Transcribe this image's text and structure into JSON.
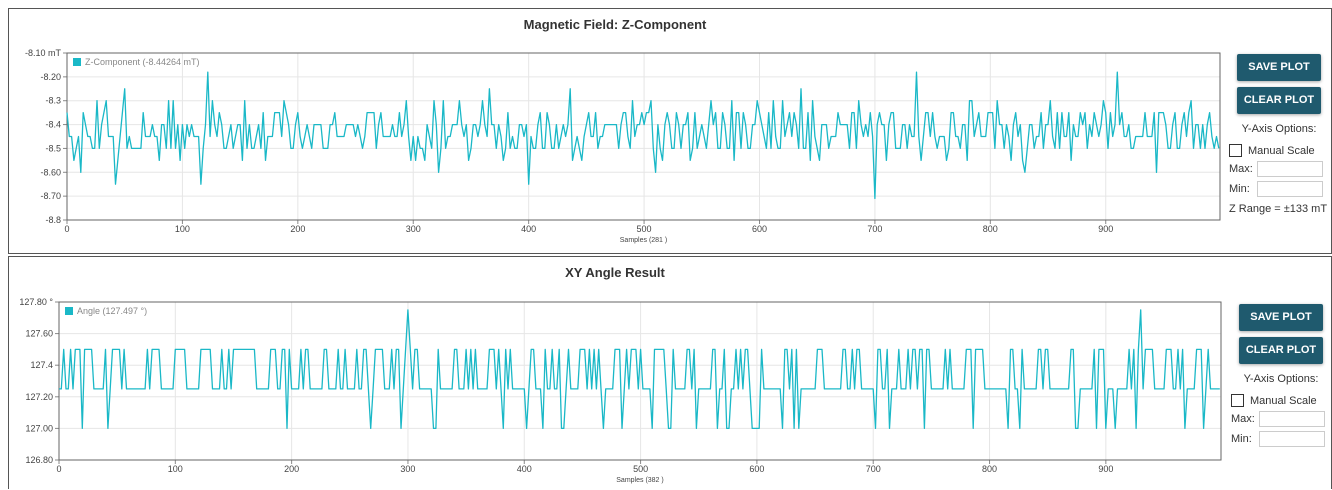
{
  "panels": {
    "z": {
      "title": "Magnetic Field: Z-Component",
      "save_label": "SAVE PLOT",
      "clear_label": "CLEAR PLOT",
      "yaxis_options_label": "Y-Axis Options:",
      "manual_scale_label": "Manual Scale",
      "max_label": "Max:",
      "min_label": "Min:",
      "range_text": "Z Range = ±133 mT"
    },
    "xy": {
      "title": "XY Angle Result",
      "save_label": "SAVE PLOT",
      "clear_label": "CLEAR PLOT",
      "yaxis_options_label": "Y-Axis Options:",
      "manual_scale_label": "Manual Scale",
      "max_label": "Max:",
      "min_label": "Min:"
    }
  },
  "colors": {
    "series": "#1ab8c7",
    "button": "#1f5a6e",
    "grid": "#e6e6e6"
  },
  "chart_data": [
    {
      "type": "line",
      "title": "Magnetic Field: Z-Component",
      "xlabel": "Samples (281 )",
      "ylabel": "",
      "xlim": [
        0,
        999
      ],
      "ylim": [
        -8.8,
        -8.1
      ],
      "xticks": [
        0,
        100,
        200,
        300,
        400,
        500,
        600,
        700,
        800,
        900
      ],
      "yticks": [
        {
          "v": -8.1,
          "label": "-8.10 mT"
        },
        {
          "v": -8.2,
          "label": "-8.20"
        },
        {
          "v": -8.3,
          "label": "-8.3"
        },
        {
          "v": -8.4,
          "label": "-8.4"
        },
        {
          "v": -8.5,
          "label": "-8.5"
        },
        {
          "v": -8.6,
          "label": "-8.60"
        },
        {
          "v": -8.7,
          "label": "-8.70"
        },
        {
          "v": -8.8,
          "label": "-8.8"
        }
      ],
      "legend": "top-left",
      "series": [
        {
          "name": "Z-Component (-8.44264 mT)",
          "levels": [
            -8.45,
            -8.4,
            -8.5,
            -8.35,
            -8.45,
            -8.55,
            -8.4,
            -8.5,
            -8.45,
            -8.3
          ],
          "spikes": [
            {
              "x": 12,
              "y": -8.6
            },
            {
              "x": 43,
              "y": -8.65
            },
            {
              "x": 50,
              "y": -8.25
            },
            {
              "x": 93,
              "y": -8.3
            },
            {
              "x": 117,
              "y": -8.65
            },
            {
              "x": 122,
              "y": -8.18
            },
            {
              "x": 295,
              "y": -8.3
            },
            {
              "x": 323,
              "y": -8.6
            },
            {
              "x": 367,
              "y": -8.25
            },
            {
              "x": 401,
              "y": -8.65
            },
            {
              "x": 437,
              "y": -8.25
            },
            {
              "x": 490,
              "y": -8.3
            },
            {
              "x": 510,
              "y": -8.6
            },
            {
              "x": 637,
              "y": -8.25
            },
            {
              "x": 686,
              "y": -8.3
            },
            {
              "x": 700,
              "y": -8.71
            },
            {
              "x": 737,
              "y": -8.18
            },
            {
              "x": 785,
              "y": -8.3
            },
            {
              "x": 830,
              "y": -8.6
            },
            {
              "x": 910,
              "y": -8.18
            },
            {
              "x": 945,
              "y": -8.6
            }
          ]
        }
      ]
    },
    {
      "type": "line",
      "title": "XY Angle Result",
      "xlabel": "Samples (382 )",
      "ylabel": "",
      "xlim": [
        0,
        999
      ],
      "ylim": [
        126.8,
        127.8
      ],
      "xticks": [
        0,
        100,
        200,
        300,
        400,
        500,
        600,
        700,
        800,
        900
      ],
      "yticks": [
        {
          "v": 127.8,
          "label": "127.80 °"
        },
        {
          "v": 127.6,
          "label": "127.60"
        },
        {
          "v": 127.4,
          "label": "127.4"
        },
        {
          "v": 127.2,
          "label": "127.20"
        },
        {
          "v": 127.0,
          "label": "127.00"
        },
        {
          "v": 126.8,
          "label": "126.80"
        }
      ],
      "legend": "top-left",
      "series": [
        {
          "name": "Angle (127.497 °)",
          "base": 127.25,
          "high": 127.5,
          "low": 127.0,
          "spikes": [
            {
              "x": 300,
              "y": 127.75
            },
            {
              "x": 930,
              "y": 127.75
            }
          ]
        }
      ]
    }
  ]
}
